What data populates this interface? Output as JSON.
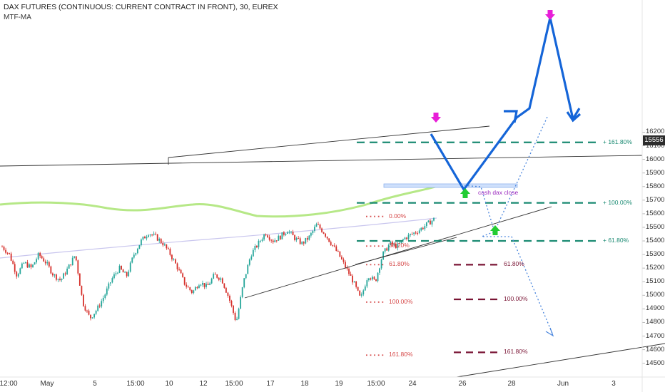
{
  "header": {
    "title": "DAX FUTURES (CONTINUOUS: CURRENT CONTRACT IN FRONT), 30, EUREX",
    "indicator": "MTF-MA"
  },
  "chart_data": {
    "type": "candlestick",
    "symbol": "DAX FUTURES (CONTINUOUS: CURRENT CONTRACT IN FRONT)",
    "timeframe": "30",
    "exchange": "EUREX",
    "last_price": "15556",
    "y_ticks": [
      14500,
      14600,
      14700,
      14800,
      14900,
      15000,
      15100,
      15200,
      15300,
      15400,
      15500,
      15600,
      15700,
      15800,
      15900,
      16000,
      16100,
      16200
    ],
    "x_ticks": [
      "12:00",
      "May",
      "5",
      "15:00",
      "10",
      "12",
      "15:00",
      "17",
      "18",
      "19",
      "15:00",
      "24",
      "26",
      "28",
      "Jun",
      "3"
    ],
    "price_path": [
      15358,
      15300,
      15150,
      15240,
      15200,
      15300,
      15240,
      15150,
      15110,
      15200,
      15300,
      14950,
      14830,
      14900,
      15000,
      15120,
      15200,
      15140,
      15300,
      15400,
      15460,
      15430,
      15380,
      15300,
      15200,
      15080,
      15020,
      15100,
      15060,
      15150,
      15120,
      14980,
      14800,
      15100,
      15300,
      15380,
      15460,
      15400,
      15430,
      15480,
      15420,
      15380,
      15430,
      15520,
      15460,
      15380,
      15300,
      15200,
      15100,
      14970,
      15150,
      15100,
      15300,
      15380,
      15360,
      15420,
      15450,
      15480,
      15520,
      15560
    ],
    "fib_left": [
      {
        "label": "0.00%",
        "price": 15580
      },
      {
        "label": "38.20%",
        "price": 15362
      },
      {
        "label": "61.80%",
        "price": 15225
      },
      {
        "label": "100.00%",
        "price": 14950
      },
      {
        "label": "161.80%",
        "price": 14560
      }
    ],
    "fib_right": [
      {
        "label": "161.80%",
        "price": 16125
      },
      {
        "label": "100.00%",
        "price": 15680
      },
      {
        "label": "61.80%",
        "price": 15400
      }
    ],
    "fib_bear": [
      {
        "label": "61.80%",
        "price": 15225
      },
      {
        "label": "100.00%",
        "price": 14970
      },
      {
        "label": "161.80%",
        "price": 14580
      }
    ],
    "annotations": [
      "cash dax close"
    ],
    "colors": {
      "up": "#26a69a",
      "down": "#d6302b",
      "ma_green": "#aee67a",
      "ma_lavender": "#c9c6ee",
      "projection": "#1565d8",
      "fib_teal": "#1a8a72",
      "fib_maroon": "#7a1535",
      "fib_red": "#d64b4b",
      "arrow_magenta": "#e81ed8",
      "arrow_green": "#22cc33",
      "cash_label": "#9b2bbf"
    }
  }
}
